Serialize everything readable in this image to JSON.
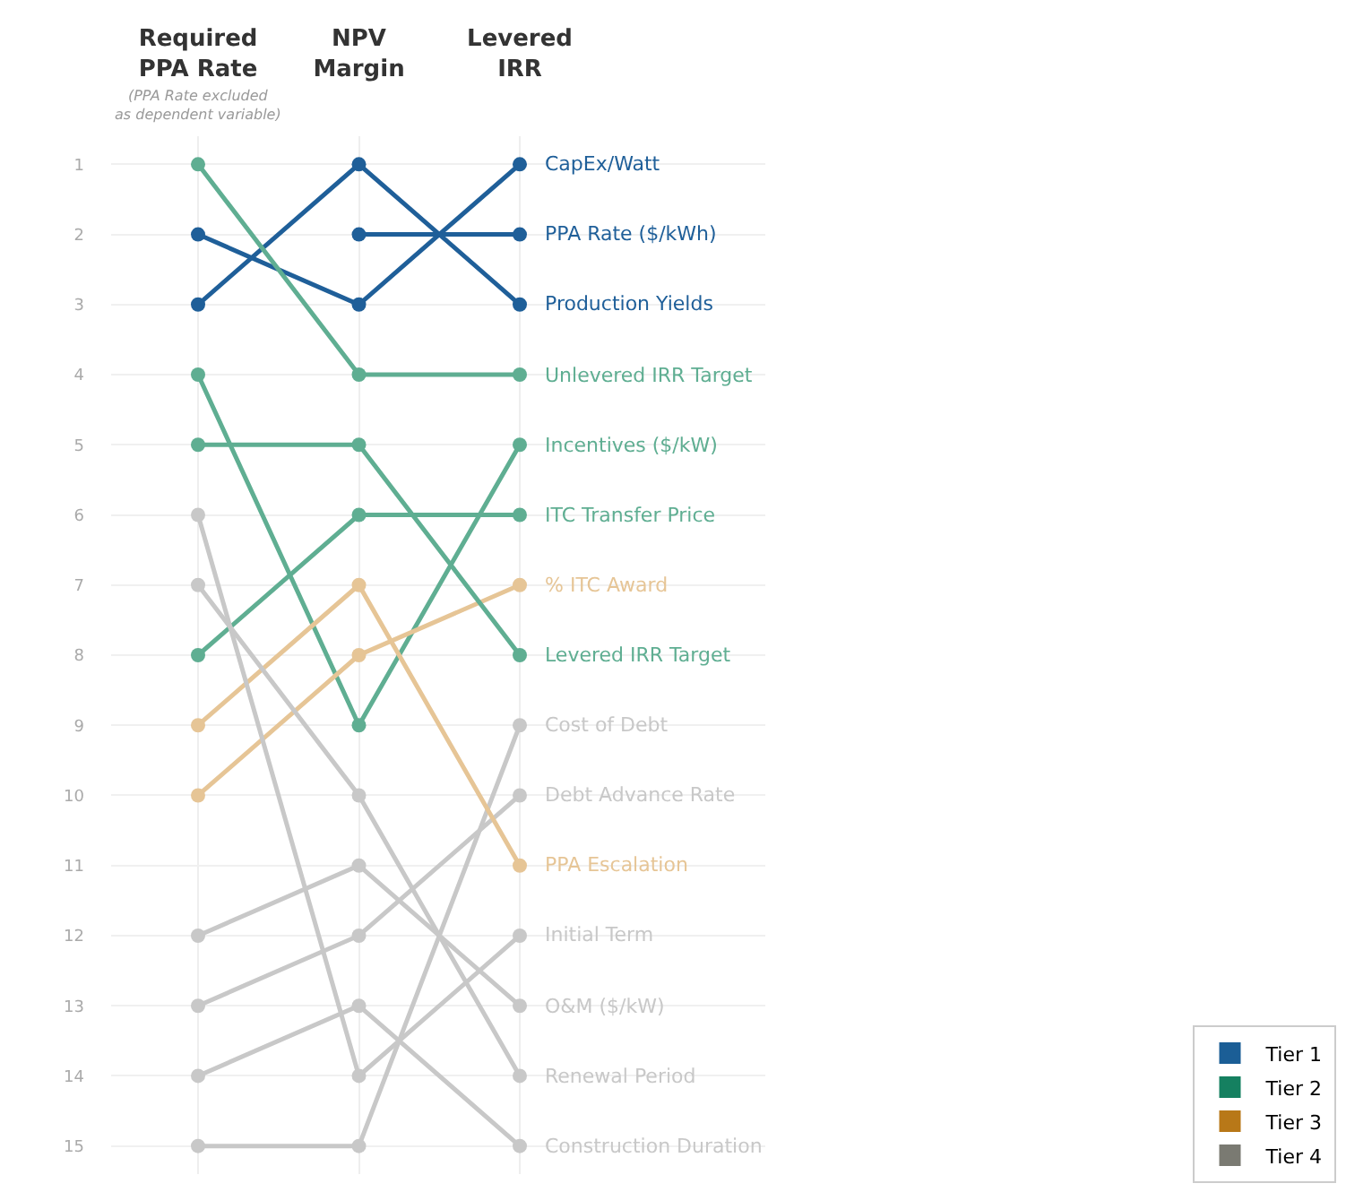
{
  "chart_data": {
    "type": "line",
    "categories": [
      "Required PPA Rate",
      "NPV Margin",
      "Levered IRR"
    ],
    "annotations": [
      "(PPA Rate excluded as dependent variable)"
    ],
    "ylim": [
      15.4,
      0.6
    ],
    "yticks": [
      1,
      2,
      3,
      4,
      5,
      6,
      7,
      8,
      9,
      10,
      11,
      12,
      13,
      14,
      15
    ],
    "grid": true,
    "marker": "circle",
    "legend": "bottom right",
    "series": [
      {
        "name": "CapEx/Watt",
        "color": "#1f5f99",
        "values": [
          2,
          3,
          1
        ]
      },
      {
        "name": "PPA Rate ($/kWh)",
        "color": "#1f5f99",
        "values": [
          null,
          2,
          2
        ]
      },
      {
        "name": "Production Yields",
        "color": "#1f5f99",
        "values": [
          3,
          1,
          3
        ]
      },
      {
        "name": "Unlevered IRR Target",
        "color": "#5fae92",
        "values": [
          1,
          4,
          4
        ]
      },
      {
        "name": "Incentives ($/kW)",
        "color": "#5fae92",
        "values": [
          4,
          9,
          5
        ]
      },
      {
        "name": "ITC Transfer Price",
        "color": "#5fae92",
        "values": [
          8,
          6,
          6
        ]
      },
      {
        "name": "% ITC Award",
        "color": "#e6c596",
        "values": [
          10,
          8,
          7
        ]
      },
      {
        "name": "Levered IRR Target",
        "color": "#5fae92",
        "values": [
          5,
          5,
          8
        ]
      },
      {
        "name": "Cost of Debt",
        "color": "#c8c8c8",
        "values": [
          15,
          15,
          9
        ]
      },
      {
        "name": "Debt Advance Rate",
        "color": "#c8c8c8",
        "values": [
          13,
          12,
          10
        ]
      },
      {
        "name": "PPA Escalation",
        "color": "#e6c596",
        "values": [
          9,
          7,
          11
        ]
      },
      {
        "name": "Initial Term",
        "color": "#c8c8c8",
        "values": [
          6,
          14,
          12
        ]
      },
      {
        "name": "O&M ($/kW)",
        "color": "#c8c8c8",
        "values": [
          12,
          11,
          13
        ]
      },
      {
        "name": "Renewal Period",
        "color": "#c8c8c8",
        "values": [
          7,
          10,
          14
        ]
      },
      {
        "name": "Construction Duration",
        "color": "#c8c8c8",
        "values": [
          14,
          13,
          15
        ]
      },
      {
        "name": "Tier 1",
        "type": "bar",
        "color": "#1b5e96",
        "values": [
          null,
          null,
          null
        ]
      },
      {
        "name": "Tier 2",
        "type": "bar",
        "color": "#158060",
        "values": [
          null,
          null,
          null
        ]
      },
      {
        "name": "Tier 3",
        "type": "bar",
        "color": "#b87818",
        "values": [
          null,
          null,
          null
        ]
      },
      {
        "name": "Tier 4",
        "type": "bar",
        "color": "#7a7a72",
        "values": [
          null,
          null,
          null
        ]
      }
    ]
  }
}
